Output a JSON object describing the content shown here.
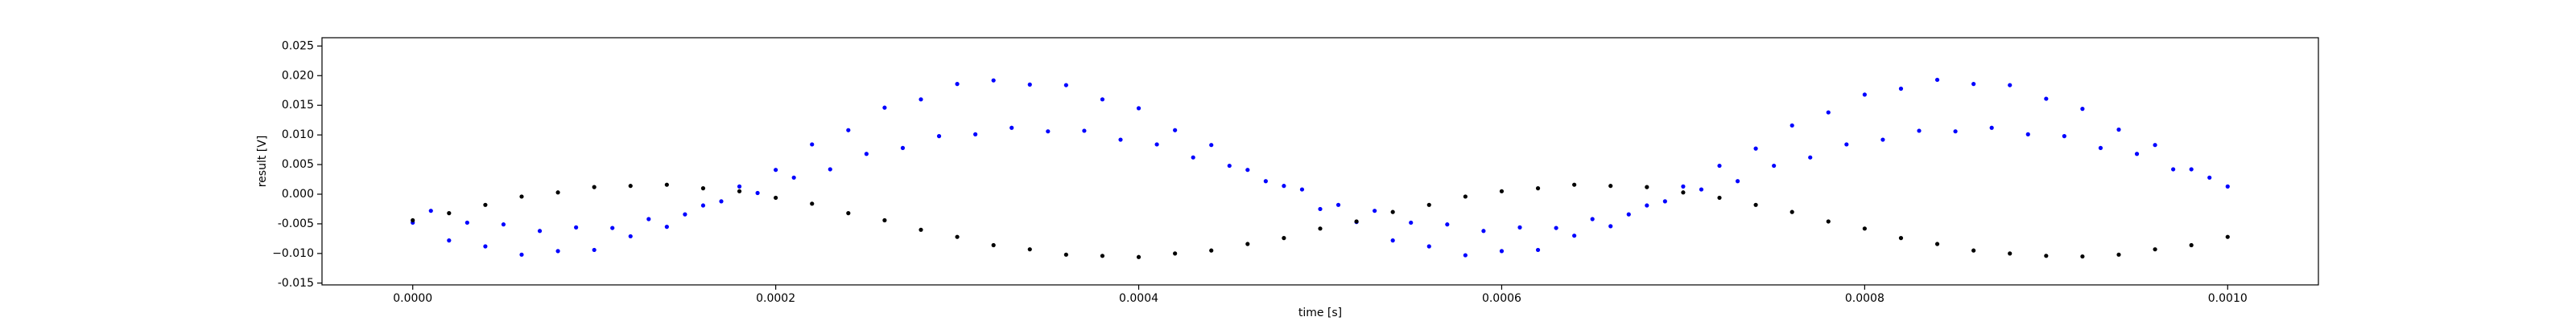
{
  "chart_data": {
    "type": "scatter",
    "xlabel": "time [s]",
    "ylabel": "result [V]",
    "xlim": [
      -5e-05,
      0.00105
    ],
    "ylim": [
      -0.0153,
      0.0264
    ],
    "xticks": [
      {
        "value": 0,
        "label": "0.0000"
      },
      {
        "value": 0.0002,
        "label": "0.0002"
      },
      {
        "value": 0.0004,
        "label": "0.0004"
      },
      {
        "value": 0.0006,
        "label": "0.0006"
      },
      {
        "value": 0.0008,
        "label": "0.0008"
      },
      {
        "value": 0.001,
        "label": "0.0010"
      }
    ],
    "yticks": [
      -0.015,
      {
        "value": -0.01,
        "label": "−0.010"
      },
      -0.005,
      {
        "value": 0,
        "label": "0.000"
      },
      0.005,
      {
        "value": 0.01,
        "label": "0.010"
      },
      0.015,
      {
        "value": 0.02,
        "label": "0.020"
      },
      0.025
    ],
    "series": [
      {
        "color": "#0000ff",
        "x": [
          0,
          2e-05,
          4e-05,
          6e-05,
          8e-05,
          0.0001,
          0.00012,
          0.00014,
          0.00016,
          0.00018,
          0.0002,
          0.00022,
          0.00024,
          0.00026,
          0.00028,
          0.0003,
          0.00032,
          0.00034,
          0.00036,
          0.00038,
          0.0004,
          0.00042,
          0.00044,
          0.00046,
          0.00048,
          0.0005,
          0.00052,
          0.00054,
          0.00056,
          0.00058,
          0.0006,
          0.00062,
          0.00064,
          0.00066,
          0.00068,
          0.0007,
          0.00072,
          0.00074,
          0.00076,
          0.00078,
          0.0008,
          0.00082,
          0.00084,
          0.00086,
          0.00088,
          0.0009,
          0.00092,
          0.00094,
          0.00096,
          0.00098,
          0.001,
          1e-05,
          3e-05,
          5e-05,
          7e-05,
          9e-05,
          0.00011,
          0.00013,
          0.00015,
          0.00017,
          0.00019,
          0.00021,
          0.00023,
          0.00025,
          0.00027,
          0.00029,
          0.00031,
          0.00033,
          0.00035,
          0.00037,
          0.00039,
          0.00041,
          0.00043,
          0.00045,
          0.00047,
          0.00049,
          0.00051,
          0.00053,
          0.00055,
          0.00057,
          0.00059,
          0.00061,
          0.00063,
          0.00065,
          0.00067,
          0.00069,
          0.00071,
          0.00073,
          0.00075,
          0.00077,
          0.00079,
          0.00081,
          0.00083,
          0.00085,
          0.00087,
          0.00089,
          0.00091,
          0.00093,
          0.00095,
          0.00097,
          0.00099
        ],
        "values": [
          -0.0048,
          -0.0078,
          -0.0088,
          -0.0102,
          -0.0096,
          -0.0094,
          -0.0071,
          -0.0055,
          -0.0019,
          0.0013,
          0.0041,
          0.0084,
          0.0108,
          0.0146,
          0.016,
          0.0186,
          0.0192,
          0.0185,
          0.0184,
          0.016,
          0.0145,
          0.0108,
          0.0083,
          0.0041,
          0.0014,
          -0.0025,
          -0.0047,
          -0.0078,
          -0.0088,
          -0.0103,
          -0.0096,
          -0.0094,
          -0.007,
          -0.0054,
          -0.0019,
          0.0013,
          0.0048,
          0.0077,
          0.0116,
          0.0138,
          0.0168,
          0.0178,
          0.0193,
          0.0186,
          0.0184,
          0.0161,
          0.0144,
          0.0109,
          0.0083,
          0.0042,
          0.0013,
          -0.0028,
          -0.0048,
          -0.0051,
          -0.0062,
          -0.0056,
          -0.0057,
          -0.0042,
          -0.0034,
          -0.0012,
          0.0002,
          0.0028,
          0.0042,
          0.0068,
          0.0078,
          0.0098,
          0.0101,
          0.0112,
          0.0106,
          0.0107,
          0.0092,
          0.0084,
          0.0062,
          0.0048,
          0.0022,
          0.0008,
          -0.0018,
          -0.0028,
          -0.0048,
          -0.0051,
          -0.0062,
          -0.0056,
          -0.0057,
          -0.0042,
          -0.0034,
          -0.0012,
          0.0008,
          0.0022,
          0.0048,
          0.0062,
          0.0084,
          0.0092,
          0.0107,
          0.0106,
          0.0112,
          0.0101,
          0.0098,
          0.0078,
          0.0068,
          0.0042,
          0.0028
        ]
      },
      {
        "color": "#000000",
        "x": [
          0,
          2e-05,
          4e-05,
          6e-05,
          8e-05,
          0.0001,
          0.00012,
          0.00014,
          0.00016,
          0.00018,
          0.0002,
          0.00022,
          0.00024,
          0.00026,
          0.00028,
          0.0003,
          0.00032,
          0.00034,
          0.00036,
          0.00038,
          0.0004,
          0.00042,
          0.00044,
          0.00046,
          0.00048,
          0.0005,
          0.00052,
          0.00054,
          0.00056,
          0.00058,
          0.0006,
          0.00062,
          0.00064,
          0.00066,
          0.00068,
          0.0007,
          0.00072,
          0.00074,
          0.00076,
          0.00078,
          0.0008,
          0.00082,
          0.00084,
          0.00086,
          0.00088,
          0.0009,
          0.00092,
          0.00094,
          0.00096,
          0.00098,
          0.001
        ],
        "values": [
          -0.0044,
          -0.0032,
          -0.0018,
          -0.0004,
          0.0003,
          0.0012,
          0.0014,
          0.0016,
          0.001,
          0.0005,
          -0.0006,
          -0.0016,
          -0.0032,
          -0.0044,
          -0.006,
          -0.0072,
          -0.0086,
          -0.0093,
          -0.0102,
          -0.0104,
          -0.0106,
          -0.01,
          -0.0095,
          -0.0084,
          -0.0074,
          -0.0058,
          -0.0046,
          -0.003,
          -0.0018,
          -0.0004,
          0.0005,
          0.001,
          0.0016,
          0.0014,
          0.0012,
          0.0003,
          -0.0006,
          -0.0018,
          -0.003,
          -0.0046,
          -0.0058,
          -0.0074,
          -0.0084,
          -0.0095,
          -0.01,
          -0.0104,
          -0.0105,
          -0.0102,
          -0.0093,
          -0.0086,
          -0.0072
        ]
      }
    ]
  }
}
